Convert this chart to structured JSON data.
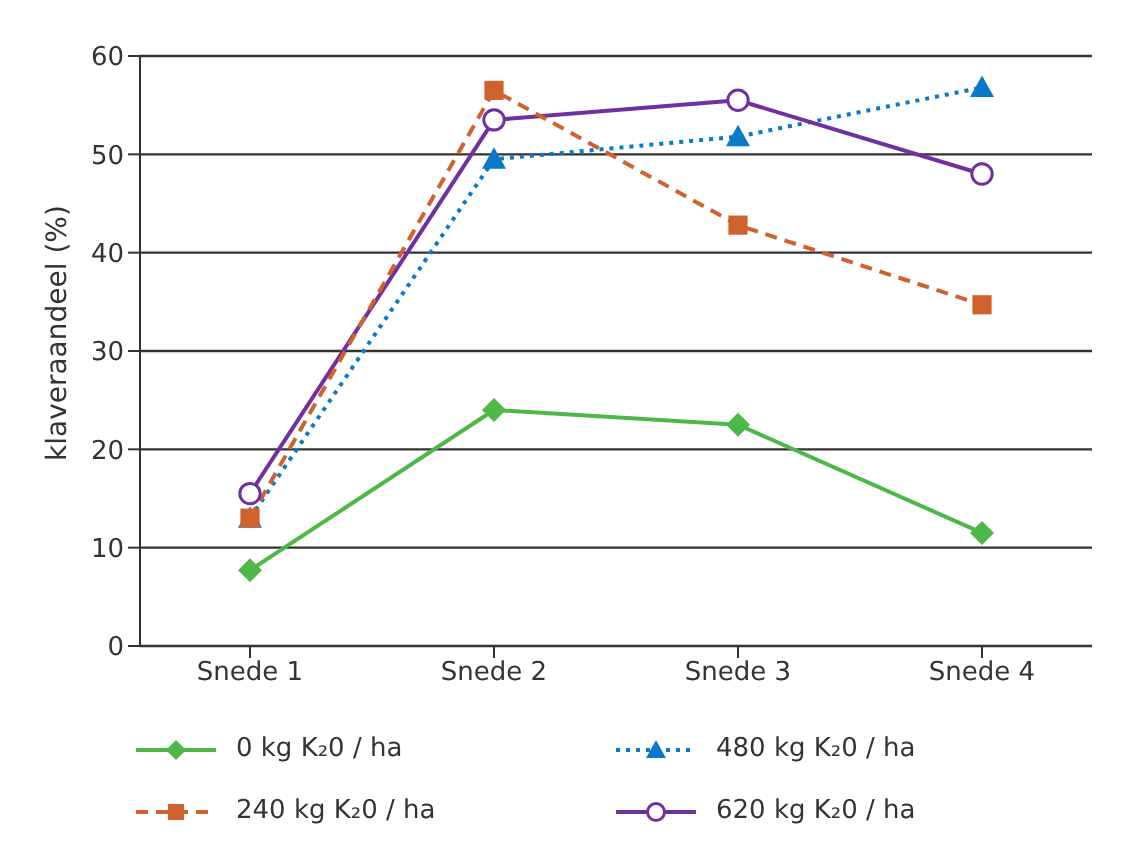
{
  "chart_data": {
    "type": "line",
    "ylabel": "klaveraandeel (%)",
    "categories": [
      "Snede 1",
      "Snede 2",
      "Snede 3",
      "Snede 4"
    ],
    "ylim": [
      0,
      60
    ],
    "yticks": [
      0,
      10,
      20,
      30,
      40,
      50,
      60
    ],
    "grid": "y",
    "legend": "bottom",
    "series": [
      {
        "name": "0 kg K₂0 / ha",
        "color": "#4db848",
        "values": [
          7.7,
          24,
          22.5,
          11.5
        ],
        "marker": "diamond",
        "line_style": "solid"
      },
      {
        "name": "240 kg K₂0 / ha",
        "color": "#d0622e",
        "values": [
          13,
          56.5,
          42.8,
          34.7
        ],
        "marker": "square",
        "line_style": "dashed"
      },
      {
        "name": "480 kg K₂0 / ha",
        "color": "#0a7ac8",
        "values": [
          13,
          49.5,
          51.8,
          56.8
        ],
        "marker": "triangle",
        "line_style": "dotted"
      },
      {
        "name": "620 kg K₂0 / ha",
        "color": "#7030a0",
        "values": [
          15.5,
          53.5,
          55.5,
          48
        ],
        "marker": "circle",
        "line_style": "solid"
      }
    ]
  }
}
